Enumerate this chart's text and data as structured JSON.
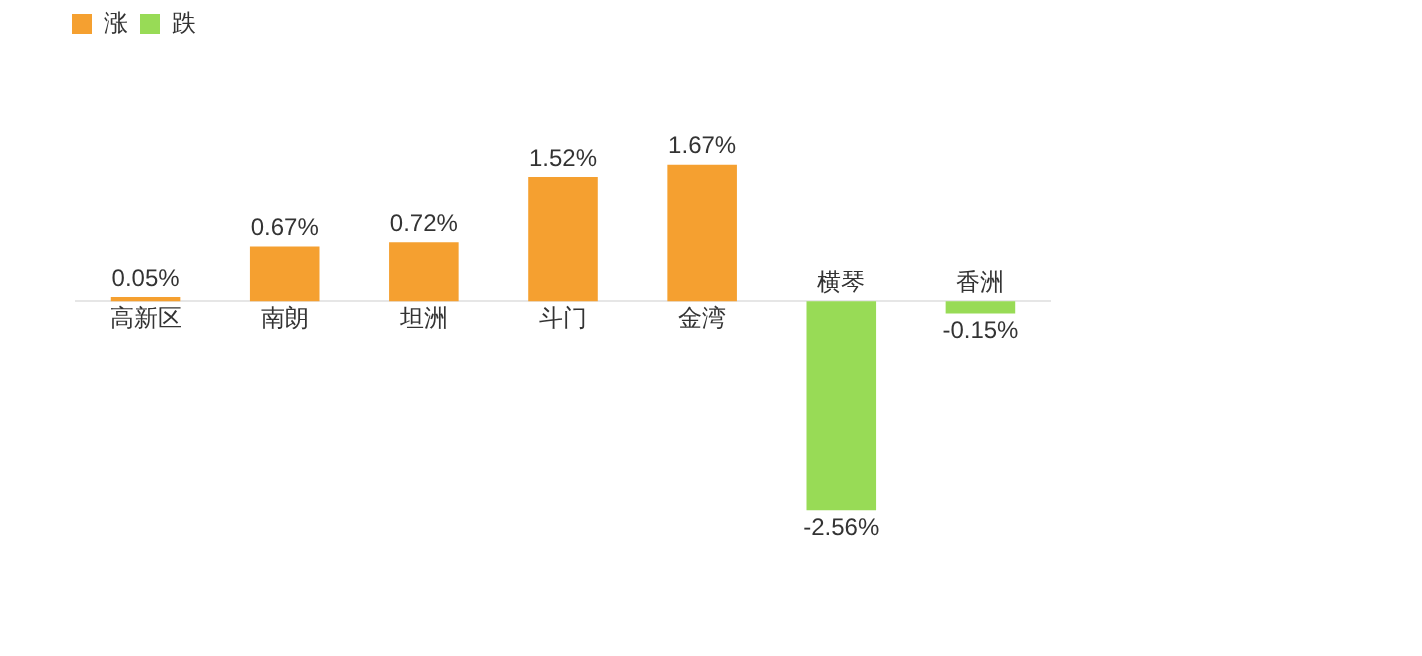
{
  "chart_data": {
    "type": "bar",
    "categories": [
      "高新区",
      "南朗",
      "坦洲",
      "斗门",
      "金湾",
      "横琴",
      "香洲"
    ],
    "series": [
      {
        "name": "涨",
        "color": "#f5a030",
        "values": [
          0.05,
          0.67,
          0.72,
          1.52,
          1.67,
          null,
          null
        ],
        "value_labels": [
          "0.05%",
          "0.67%",
          "0.72%",
          "1.52%",
          "1.67%",
          null,
          null
        ]
      },
      {
        "name": "跌",
        "color": "#98db56",
        "values": [
          null,
          null,
          null,
          null,
          null,
          -2.56,
          -0.15
        ],
        "value_labels": [
          null,
          null,
          null,
          null,
          null,
          "-2.56%",
          "-0.15%"
        ]
      }
    ],
    "legend": "top left",
    "grid": false,
    "tick_labels": "x"
  }
}
